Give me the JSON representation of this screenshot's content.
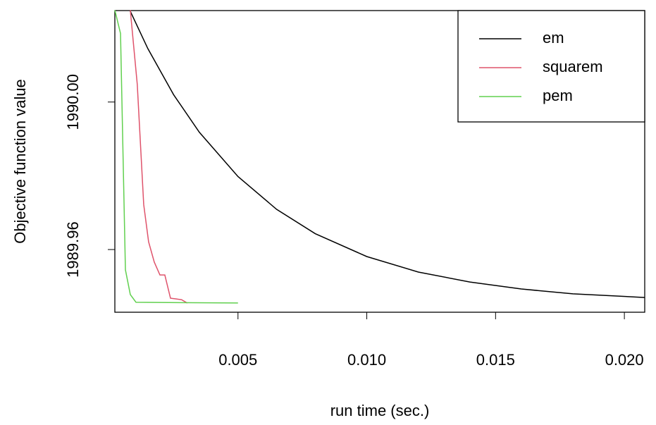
{
  "chart_data": {
    "type": "line",
    "xlabel": "run time (sec.)",
    "ylabel": "Objective function value",
    "xlim": [
      0.00022,
      0.02079
    ],
    "ylim": [
      1989.943,
      1990.0248
    ],
    "xticks": [
      0.005,
      {
        "value": 0.01,
        "label": "0.010"
      },
      0.015,
      {
        "value": 0.02,
        "label": "0.020"
      }
    ],
    "yticks": [
      {
        "value": 1989.96,
        "label": "1989.96"
      },
      {
        "value": 1990,
        "label": "1990.00"
      }
    ],
    "legend": "top-right",
    "series": [
      {
        "name": "em",
        "color": "#000000",
        "x": [
          0.0008,
          0.0015,
          0.0025,
          0.0035,
          0.005,
          0.0065,
          0.008,
          0.01,
          0.012,
          0.014,
          0.016,
          0.018,
          0.0208
        ],
        "values": [
          1990.0249,
          1990.0145,
          1990.002,
          1989.9918,
          1989.9798,
          1989.9709,
          1989.9643,
          1989.9581,
          1989.9539,
          1989.9512,
          1989.9493,
          1989.948,
          1989.947
        ]
      },
      {
        "name": "squarem",
        "color": "#DF536B",
        "x": [
          0.00082,
          0.00109,
          0.00134,
          0.00153,
          0.00175,
          0.00197,
          0.00216,
          0.00238,
          0.0026,
          0.00281,
          0.00303
        ],
        "values": [
          1990.0249,
          1990.0048,
          1989.9722,
          1989.9621,
          1989.9566,
          1989.9531,
          1989.9531,
          1989.9468,
          1989.9466,
          1989.9464,
          1989.9455
        ]
      },
      {
        "name": "pem",
        "color": "#61D04F",
        "x": [
          0.00022,
          0.00044,
          0.00063,
          0.00082,
          0.00104,
          0.005
        ],
        "values": [
          1990.0249,
          1990.0186,
          1989.9545,
          1989.9478,
          1989.9457,
          1989.9455
        ]
      }
    ]
  }
}
